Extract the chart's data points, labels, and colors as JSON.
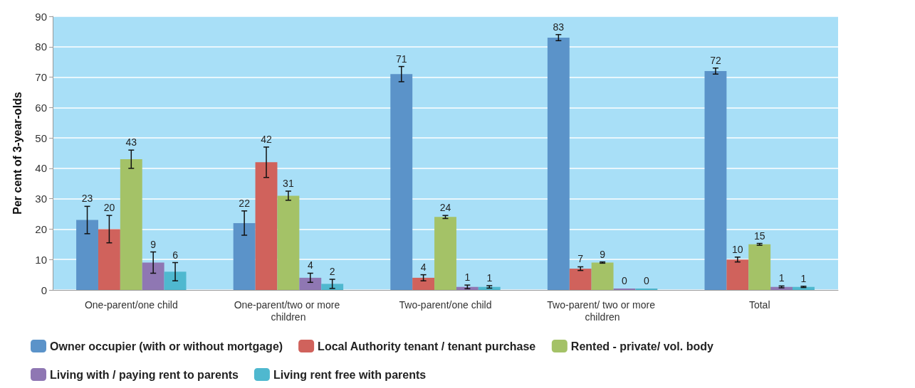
{
  "chart_data": {
    "type": "bar",
    "ylabel": "Per cent of 3-year-olds",
    "categories": [
      "One-parent/one child",
      "One-parent/two or more children",
      "Two-parent/one child",
      "Two-parent/ two or more children",
      "Total"
    ],
    "series": [
      {
        "name": "Owner occupier (with or without mortgage)",
        "color": "#5b93c9",
        "values": [
          23,
          22,
          71,
          83,
          72
        ],
        "errors": [
          4.5,
          4,
          2.5,
          1,
          1
        ]
      },
      {
        "name": "Local Authority tenant / tenant purchase",
        "color": "#d0625c",
        "values": [
          20,
          42,
          4,
          7,
          10
        ],
        "errors": [
          4.5,
          5,
          1,
          0.6,
          0.8
        ]
      },
      {
        "name": "Rented - private/ vol. body",
        "color": "#a4c267",
        "values": [
          43,
          31,
          24,
          9,
          15
        ],
        "errors": [
          3,
          1.5,
          0.5,
          0.2,
          0.3
        ]
      },
      {
        "name": "Living with / paying rent to parents",
        "color": "#8f77b3",
        "values": [
          9,
          4,
          1,
          0,
          1
        ],
        "errors": [
          3.5,
          1.5,
          0.6,
          null,
          0.3
        ]
      },
      {
        "name": "Living rent free with parents",
        "color": "#4fb8cf",
        "values": [
          6,
          2,
          1,
          0,
          1
        ],
        "errors": [
          3,
          1.5,
          0.4,
          null,
          0.2
        ]
      }
    ],
    "ylim": [
      0,
      90
    ],
    "yticks": [
      0,
      10,
      20,
      30,
      40,
      50,
      60,
      70,
      80,
      90
    ],
    "grid": "y",
    "legend": "bottom",
    "data_labels": true
  }
}
